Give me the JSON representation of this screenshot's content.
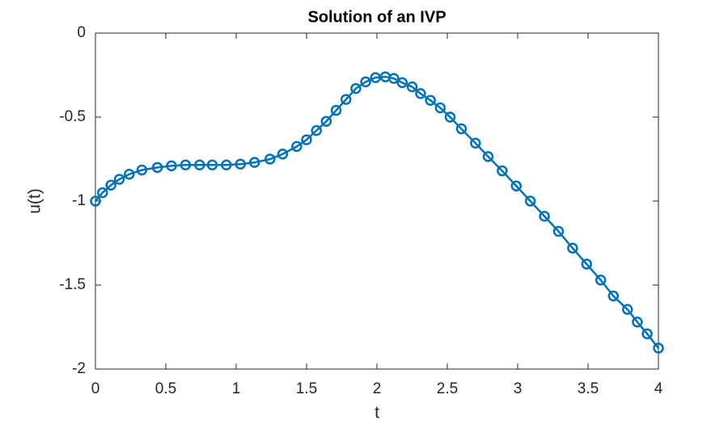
{
  "chart_data": {
    "type": "line",
    "title": "Solution of an IVP",
    "x_label": "t",
    "y_label": "u(t)",
    "series": [
      {
        "name": "u",
        "color": "#0072bd",
        "marker": "circle",
        "x": [
          0,
          0.05,
          0.11,
          0.17,
          0.24,
          0.33,
          0.44,
          0.54,
          0.64,
          0.74,
          0.83,
          0.93,
          1.03,
          1.13,
          1.24,
          1.33,
          1.43,
          1.5,
          1.57,
          1.64,
          1.71,
          1.78,
          1.85,
          1.92,
          1.99,
          2.06,
          2.12,
          2.18,
          2.25,
          2.31,
          2.38,
          2.45,
          2.52,
          2.6,
          2.7,
          2.79,
          2.89,
          2.99,
          3.09,
          3.19,
          3.29,
          3.39,
          3.49,
          3.59,
          3.68,
          3.78,
          3.85,
          3.92,
          4.0
        ],
        "values": [
          -1.0,
          -0.95,
          -0.905,
          -0.87,
          -0.84,
          -0.815,
          -0.8,
          -0.79,
          -0.785,
          -0.785,
          -0.785,
          -0.785,
          -0.78,
          -0.77,
          -0.75,
          -0.72,
          -0.675,
          -0.635,
          -0.58,
          -0.525,
          -0.46,
          -0.395,
          -0.33,
          -0.29,
          -0.265,
          -0.26,
          -0.27,
          -0.295,
          -0.32,
          -0.36,
          -0.4,
          -0.445,
          -0.5,
          -0.57,
          -0.655,
          -0.735,
          -0.82,
          -0.91,
          -1.0,
          -1.09,
          -1.18,
          -1.28,
          -1.375,
          -1.47,
          -1.565,
          -1.645,
          -1.72,
          -1.79,
          -1.875
        ]
      }
    ],
    "xlim": [
      0,
      4
    ],
    "xticks": [
      0,
      0.5,
      1,
      1.5,
      2,
      2.5,
      3,
      3.5,
      4
    ],
    "ylim": [
      -2,
      0
    ],
    "yticks": [
      -2,
      -1.5,
      -1,
      -0.5,
      0
    ],
    "grid": false
  }
}
